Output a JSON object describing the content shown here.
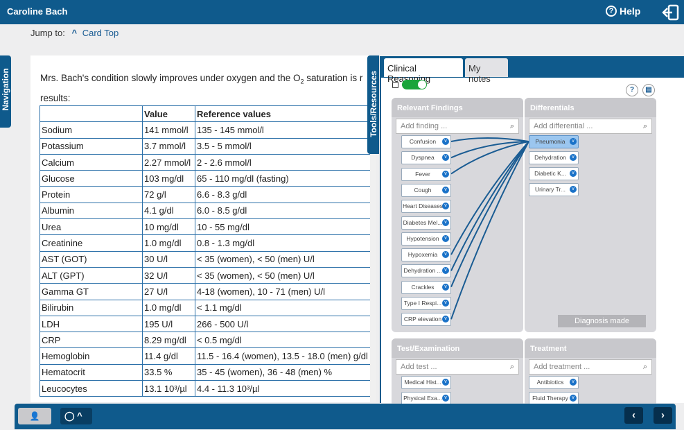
{
  "header": {
    "user_name": "Caroline Bach",
    "help_label": "Help"
  },
  "jump": {
    "label": "Jump to:",
    "link": "Card Top"
  },
  "side_tabs": {
    "navigation": "Navigation",
    "tools": "Tools/Resources"
  },
  "content": {
    "intro_a": "Mrs. Bach's condition slowly improves under oxygen and the O",
    "intro_sub": "2",
    "intro_b": " saturation is r",
    "intro_line2": "results:",
    "columns": [
      "",
      "Value",
      "Reference values"
    ],
    "rows": [
      [
        "Sodium",
        "141 mmol/l",
        "135 - 145 mmol/l"
      ],
      [
        "Potassium",
        "3.7 mmol/l",
        "3.5 - 5 mmol/l"
      ],
      [
        "Calcium",
        "2.27 mmol/l",
        "2 - 2.6 mmol/l"
      ],
      [
        "Glucose",
        "103 mg/dl",
        "65 - 110 mg/dl (fasting)"
      ],
      [
        "Protein",
        "72 g/l",
        "6.6 - 8.3 g/dl"
      ],
      [
        "Albumin",
        "4.1 g/dl",
        "6.0 - 8.5 g/dl"
      ],
      [
        "Urea",
        "10 mg/dl",
        "10 - 55 mg/dl"
      ],
      [
        "Creatinine",
        "1.0 mg/dl",
        "0.8 - 1.3 mg/dl"
      ],
      [
        "AST (GOT)",
        "30 U/l",
        "< 35 (women), < 50 (men) U/l"
      ],
      [
        "ALT (GPT)",
        "32 U/l",
        "< 35 (women), < 50 (men) U/l"
      ],
      [
        "Gamma GT",
        "27 U/l",
        "4-18 (women), 10 - 71 (men) U/l"
      ],
      [
        "Bilirubin",
        "1.0 mg/dl",
        "< 1.1 mg/dl"
      ],
      [
        "LDH",
        "195 U/l",
        "266 - 500 U/l"
      ],
      [
        "CRP",
        "8.29 mg/dl",
        "< 0.5 mg/dl"
      ],
      [
        "Hemoglobin",
        "11.4 g/dl",
        "11.5 - 16.4 (women), 13.5 - 18.0 (men) g/dl"
      ],
      [
        "Hematocrit",
        "33.5 %",
        "35 - 45 (women), 36 - 48 (men) %"
      ],
      [
        "Leucocytes",
        "13.1 10³/µl",
        "4.4 - 11.3 10³/µl"
      ]
    ]
  },
  "reasoning": {
    "tabs": [
      "Clinical Reasoning",
      "My notes"
    ],
    "findings": {
      "title": "Relevant Findings",
      "placeholder": "Add finding ...",
      "items": [
        "Confusion",
        "Dyspnea",
        "Fever",
        "Cough",
        "Heart Diseases",
        "Diabetes Mel...",
        "Hypotension",
        "Hypoxemia",
        "Dehydration ...",
        "Crackles",
        "Type I Respi...",
        "CRP elevation"
      ]
    },
    "differentials": {
      "title": "Differentials",
      "placeholder": "Add differential ...",
      "items": [
        "Pneumonia",
        "Dehydration",
        "Diabetic K...",
        "Urinary Tr..."
      ],
      "diagnosis_button": "Diagnosis made"
    },
    "tests": {
      "title": "Test/Examination",
      "placeholder": "Add test ...",
      "items": [
        "Medical Hist...",
        "Physical Exa..."
      ]
    },
    "treatment": {
      "title": "Treatment",
      "placeholder": "Add treatment ...",
      "items": [
        "Antibiotics",
        "Fluid Therapy"
      ]
    }
  }
}
